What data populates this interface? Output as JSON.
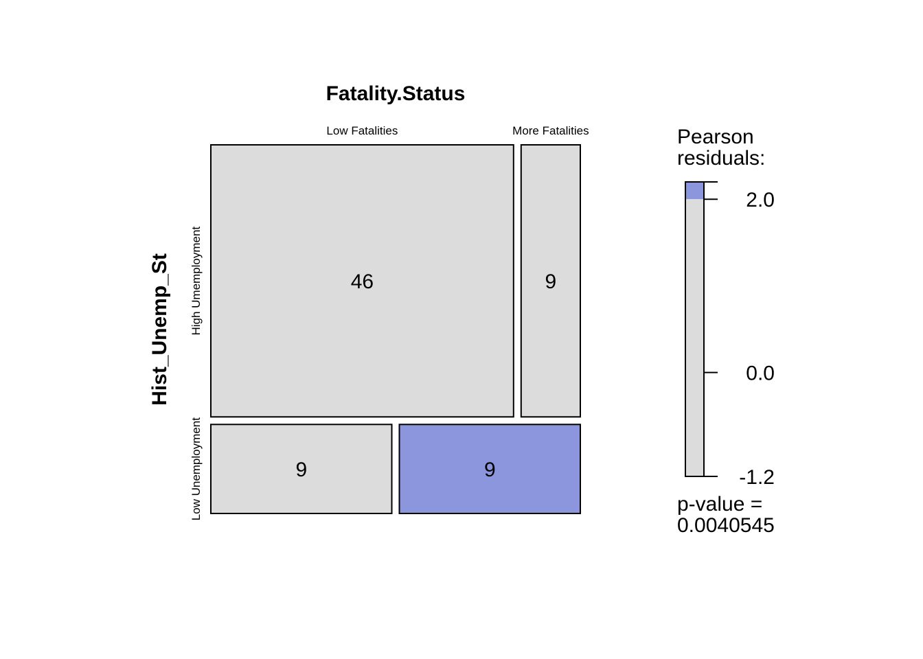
{
  "chart_data": {
    "type": "mosaic",
    "column_variable": "Fatality.Status",
    "row_variable": "Hist_Unemp_St",
    "column_levels": [
      "Low Fatalities",
      "More Fatalities"
    ],
    "row_levels": [
      "High Umemployment",
      "Low Unemployment"
    ],
    "cells": [
      {
        "row": "High Umemployment",
        "column": "Low Fatalities",
        "count": 46,
        "label": "46",
        "shaded": false
      },
      {
        "row": "High Umemployment",
        "column": "More Fatalities",
        "count": 9,
        "label": "9",
        "shaded": false
      },
      {
        "row": "Low Unemployment",
        "column": "Low Fatalities",
        "count": 9,
        "label": "9",
        "shaded": false
      },
      {
        "row": "Low Unemployment",
        "column": "More Fatalities",
        "count": 9,
        "label": "9",
        "shaded": true
      }
    ],
    "legend": {
      "title_line1": "Pearson",
      "title_line2": "residuals:",
      "min": -1.2,
      "max": 2.2,
      "shade_threshold": 2.0,
      "ticks": [
        {
          "value": 2.0,
          "label": "2.0"
        },
        {
          "value": 0.0,
          "label": "0.0"
        },
        {
          "value": -1.2,
          "label": "-1.2"
        }
      ],
      "pvalue_line1": "p-value =",
      "pvalue_line2": "0.0040545"
    },
    "colors": {
      "neutral": "#dcdcdc",
      "positive": "#8b96dd",
      "border": "#000000"
    }
  }
}
